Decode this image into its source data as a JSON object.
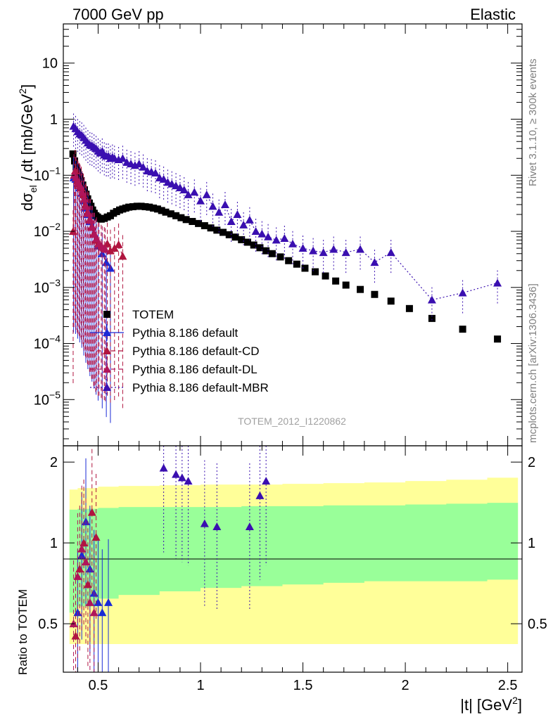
{
  "header": {
    "left": "7000 GeV pp",
    "right": "Elastic"
  },
  "side_text": {
    "rivet": "Rivet 3.1.10, ≥ 300k events",
    "mcplots": "mcplots.cern.ch [arXiv:1306.3436]"
  },
  "watermark": "TOTEM_2012_I1220862",
  "colors": {
    "totem": "#000000",
    "default": "#1a2ad6",
    "cd": "#b0153f",
    "dl": "#b0155a",
    "mbr": "#3a0fb0",
    "band_green": "#99ff99",
    "band_yellow": "#ffff99"
  },
  "chart_data": [
    {
      "type": "scatter",
      "panel": "main",
      "ylabel_main": "dσ",
      "ylabel_sub": "el",
      "ylabel_rest": " / dt [mb/GeV",
      "ylabel_sup": "2",
      "ylabel_end": "]",
      "yscale": "log",
      "xlim": [
        0.33,
        2.57
      ],
      "ylim": [
        1.5e-06,
        50
      ],
      "xticks": [
        0.5,
        1,
        1.5,
        2,
        2.5
      ],
      "yticks": [
        {
          "v": 10,
          "m": "10",
          "e": ""
        },
        {
          "v": 1,
          "m": "1",
          "e": ""
        },
        {
          "v": 0.1,
          "m": "10",
          "e": "−1"
        },
        {
          "v": 0.01,
          "m": "10",
          "e": "−2"
        },
        {
          "v": 0.001,
          "m": "10",
          "e": "−3"
        },
        {
          "v": 0.0001,
          "m": "10",
          "e": "−4"
        },
        {
          "v": 1e-05,
          "m": "10",
          "e": "−5"
        }
      ],
      "legend_position": "center-left",
      "series": [
        {
          "name": "TOTEM",
          "marker": "square",
          "x": [
            0.377,
            0.385,
            0.393,
            0.401,
            0.409,
            0.417,
            0.425,
            0.433,
            0.441,
            0.449,
            0.457,
            0.465,
            0.473,
            0.481,
            0.489,
            0.497,
            0.505,
            0.515,
            0.53,
            0.545,
            0.56,
            0.575,
            0.59,
            0.605,
            0.62,
            0.635,
            0.65,
            0.67,
            0.69,
            0.71,
            0.73,
            0.75,
            0.77,
            0.79,
            0.81,
            0.83,
            0.855,
            0.88,
            0.905,
            0.93,
            0.96,
            0.99,
            1.02,
            1.05,
            1.08,
            1.11,
            1.14,
            1.17,
            1.2,
            1.23,
            1.26,
            1.29,
            1.32,
            1.35,
            1.39,
            1.43,
            1.47,
            1.51,
            1.56,
            1.61,
            1.66,
            1.71,
            1.78,
            1.85,
            1.93,
            2.02,
            2.13,
            2.28,
            2.45
          ],
          "y": [
            0.24,
            0.18,
            0.14,
            0.115,
            0.095,
            0.08,
            0.067,
            0.055,
            0.046,
            0.038,
            0.032,
            0.028,
            0.024,
            0.021,
            0.019,
            0.018,
            0.017,
            0.0165,
            0.017,
            0.018,
            0.019,
            0.021,
            0.0225,
            0.024,
            0.025,
            0.026,
            0.027,
            0.0275,
            0.028,
            0.028,
            0.0275,
            0.027,
            0.026,
            0.025,
            0.0235,
            0.022,
            0.0205,
            0.019,
            0.0175,
            0.0162,
            0.015,
            0.0138,
            0.0126,
            0.0115,
            0.0105,
            0.0096,
            0.0087,
            0.0079,
            0.0071,
            0.0064,
            0.0057,
            0.0051,
            0.0045,
            0.004,
            0.0035,
            0.003,
            0.0026,
            0.0022,
            0.0019,
            0.0016,
            0.0013,
            0.0011,
            0.00092,
            0.00075,
            0.00057,
            0.00042,
            0.00028,
            0.00018,
            0.00012
          ]
        },
        {
          "name": "Pythia 8.186 default",
          "marker": "triangle",
          "line": "solid",
          "x": [
            0.38,
            0.39,
            0.4,
            0.41,
            0.42,
            0.43,
            0.44,
            0.45,
            0.46,
            0.47,
            0.48,
            0.49,
            0.5,
            0.52,
            0.54,
            0.56
          ],
          "y": [
            0.09,
            0.085,
            0.07,
            0.06,
            0.048,
            0.035,
            0.026,
            0.02,
            0.015,
            0.012,
            0.009,
            0.007,
            0.0055,
            0.004,
            0.0028,
            0.0022
          ]
        },
        {
          "name": "Pythia 8.186 default-CD",
          "marker": "triangle",
          "line": "dashed",
          "x": [
            0.378,
            0.388,
            0.398,
            0.408,
            0.418,
            0.428,
            0.438,
            0.448,
            0.458,
            0.468,
            0.478,
            0.488,
            0.5,
            0.515,
            0.53,
            0.545,
            0.56,
            0.58,
            0.6,
            0.62
          ],
          "y": [
            0.01,
            0.12,
            0.08,
            0.07,
            0.06,
            0.045,
            0.03,
            0.022,
            0.016,
            0.012,
            0.009,
            0.007,
            0.006,
            0.0055,
            0.005,
            0.006,
            0.0045,
            0.005,
            0.0058,
            0.0036
          ]
        },
        {
          "name": "Pythia 8.186 default-DL",
          "marker": "triangle",
          "line": "dashed",
          "x": [
            0.382,
            0.392,
            0.402,
            0.412,
            0.422,
            0.432,
            0.442,
            0.452,
            0.462,
            0.472,
            0.482,
            0.492,
            0.505,
            0.52,
            0.535
          ],
          "y": [
            0.1,
            0.09,
            0.075,
            0.065,
            0.05,
            0.038,
            0.028,
            0.021,
            0.016,
            0.012,
            0.009,
            0.0075,
            0.006,
            0.0052,
            0.0048
          ]
        },
        {
          "name": "Pythia 8.186 default-MBR",
          "marker": "triangle",
          "line": "dotted",
          "x": [
            0.38,
            0.39,
            0.4,
            0.41,
            0.42,
            0.43,
            0.44,
            0.45,
            0.46,
            0.47,
            0.48,
            0.49,
            0.5,
            0.51,
            0.52,
            0.53,
            0.54,
            0.55,
            0.56,
            0.57,
            0.58,
            0.6,
            0.62,
            0.64,
            0.66,
            0.68,
            0.7,
            0.72,
            0.74,
            0.76,
            0.78,
            0.8,
            0.82,
            0.84,
            0.86,
            0.88,
            0.9,
            0.92,
            0.94,
            0.97,
            1.0,
            1.03,
            1.06,
            1.09,
            1.12,
            1.15,
            1.18,
            1.21,
            1.24,
            1.27,
            1.3,
            1.33,
            1.37,
            1.41,
            1.45,
            1.5,
            1.55,
            1.6,
            1.65,
            1.71,
            1.78,
            1.85,
            1.93,
            2.13,
            2.28,
            2.45
          ],
          "y": [
            0.75,
            0.68,
            0.6,
            0.55,
            0.52,
            0.47,
            0.42,
            0.38,
            0.35,
            0.34,
            0.32,
            0.3,
            0.27,
            0.25,
            0.27,
            0.23,
            0.22,
            0.22,
            0.2,
            0.21,
            0.2,
            0.19,
            0.2,
            0.17,
            0.16,
            0.15,
            0.16,
            0.14,
            0.12,
            0.115,
            0.11,
            0.09,
            0.085,
            0.075,
            0.07,
            0.065,
            0.06,
            0.055,
            0.045,
            0.05,
            0.035,
            0.045,
            0.028,
            0.022,
            0.03,
            0.015,
            0.02,
            0.013,
            0.016,
            0.01,
            0.009,
            0.008,
            0.007,
            0.0075,
            0.006,
            0.005,
            0.0045,
            0.0042,
            0.0048,
            0.0042,
            0.0048,
            0.0028,
            0.0042,
            0.0006,
            0.0008,
            0.0012
          ]
        }
      ]
    },
    {
      "type": "scatter",
      "panel": "ratio",
      "ylabel": "Ratio to TOTEM",
      "xlabel_main": "|t| [GeV",
      "xlabel_sup": "2",
      "xlabel_end": "]",
      "xlim": [
        0.33,
        2.57
      ],
      "ylim": [
        0.33,
        2.3
      ],
      "xticks": [
        0.5,
        1,
        1.5,
        2,
        2.5
      ],
      "xtick_labels": [
        "0.5",
        "1",
        "1.5",
        "2",
        "2.5"
      ],
      "yticks": [
        0.5,
        1,
        2
      ],
      "ytick_labels": [
        "0.5",
        "1",
        "2"
      ],
      "bands": {
        "x": [
          0.36,
          0.4,
          0.5,
          0.6,
          0.8,
          1.0,
          1.2,
          1.4,
          1.6,
          1.8,
          2.0,
          2.2,
          2.4,
          2.55
        ],
        "yellow_low": [
          0.42,
          0.42,
          0.42,
          0.42,
          0.42,
          0.42,
          0.42,
          0.42,
          0.42,
          0.42,
          0.42,
          0.42,
          0.42,
          0.42
        ],
        "green_low": [
          0.55,
          0.58,
          0.62,
          0.64,
          0.66,
          0.68,
          0.69,
          0.7,
          0.71,
          0.72,
          0.72,
          0.72,
          0.73,
          0.73
        ],
        "green_high": [
          1.33,
          1.34,
          1.35,
          1.36,
          1.36,
          1.36,
          1.37,
          1.37,
          1.38,
          1.38,
          1.39,
          1.4,
          1.41,
          1.41
        ],
        "yellow_high": [
          1.58,
          1.6,
          1.62,
          1.63,
          1.64,
          1.65,
          1.65,
          1.66,
          1.67,
          1.68,
          1.7,
          1.72,
          1.75,
          1.77
        ]
      },
      "series": [
        {
          "name": "Pythia 8.186 default",
          "x": [
            0.4,
            0.42,
            0.44,
            0.46,
            0.48,
            0.5,
            0.52,
            0.55
          ],
          "y": [
            0.55,
            0.9,
            1.2,
            0.8,
            0.65,
            0.6,
            0.55,
            0.6
          ]
        },
        {
          "name": "Pythia 8.186 default-CD",
          "x": [
            0.39,
            0.41,
            0.43,
            0.45,
            0.47,
            0.49
          ],
          "y": [
            0.45,
            0.8,
            1.0,
            0.7,
            1.3,
            1.05
          ]
        },
        {
          "name": "Pythia 8.186 default-DL",
          "x": [
            0.38,
            0.4,
            0.42,
            0.44,
            0.46,
            0.48
          ],
          "y": [
            0.5,
            0.75,
            0.95,
            0.85,
            0.6,
            0.55
          ]
        },
        {
          "name": "Pythia 8.186 default-MBR",
          "x": [
            0.82,
            0.88,
            0.91,
            0.94,
            1.02,
            1.08,
            1.24,
            1.29,
            1.32
          ],
          "y": [
            1.9,
            1.8,
            1.75,
            1.7,
            1.18,
            1.15,
            1.15,
            1.5,
            1.7
          ]
        }
      ]
    }
  ]
}
